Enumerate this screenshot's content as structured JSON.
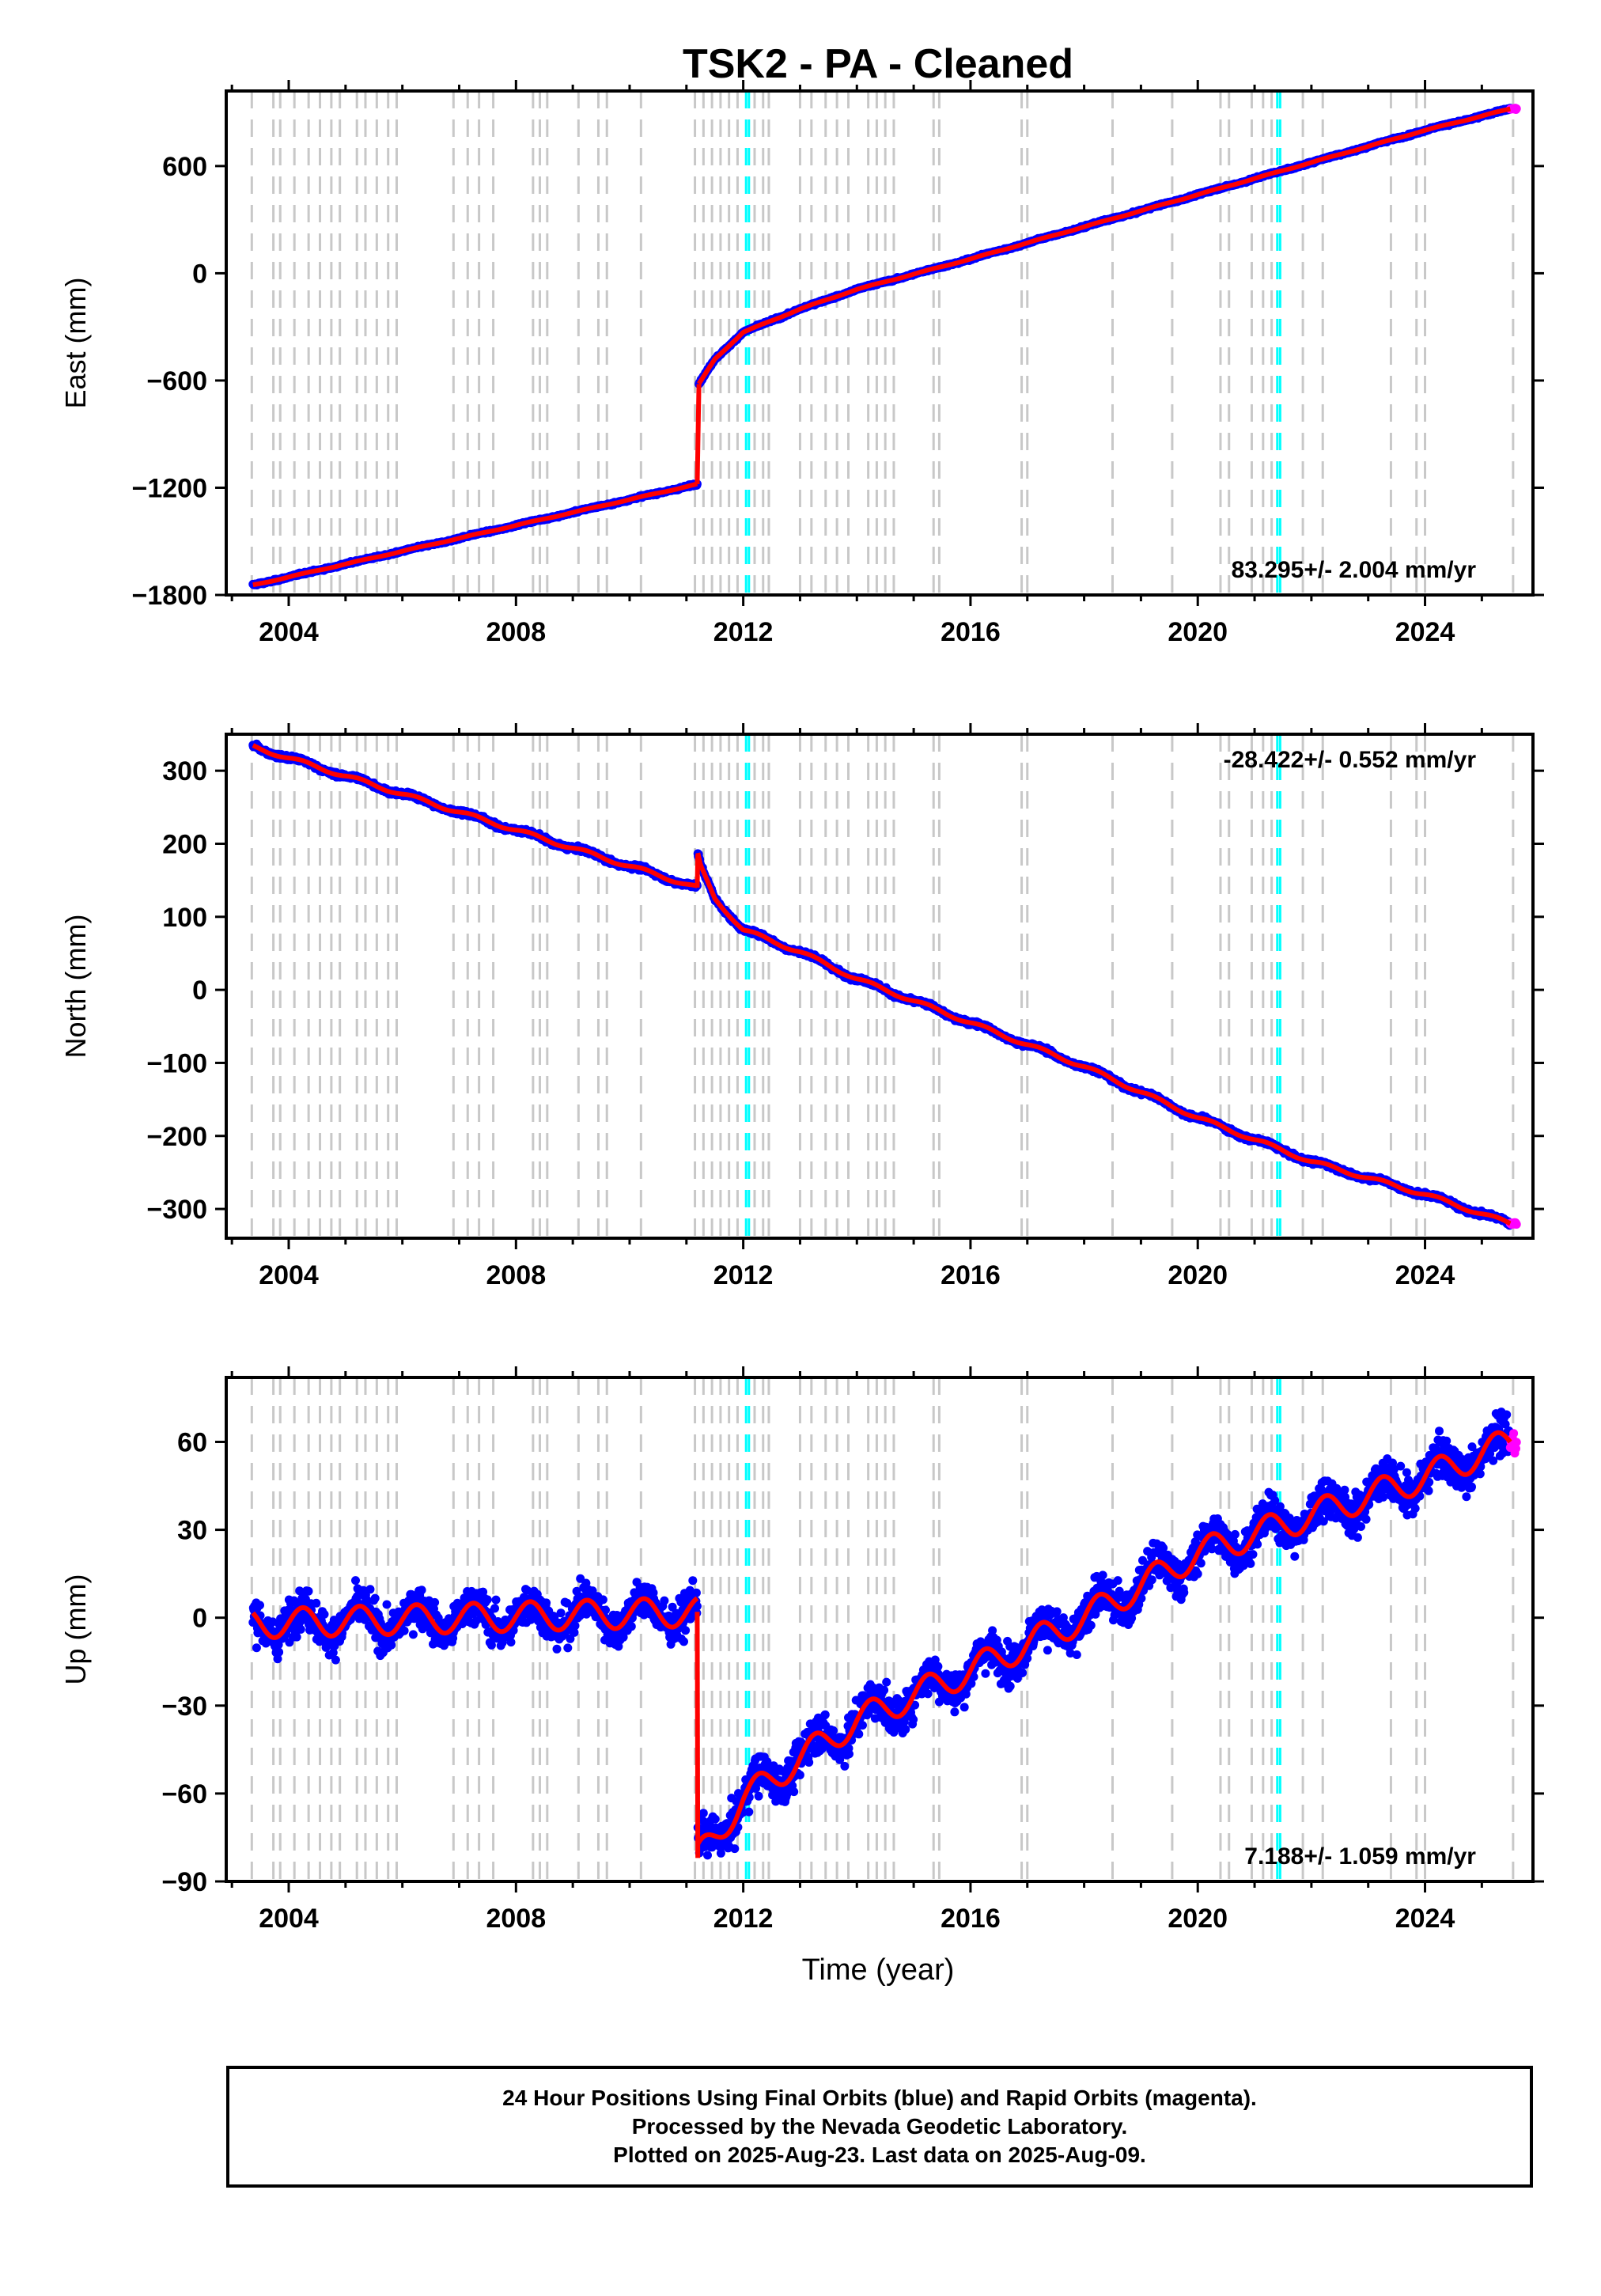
{
  "title": "TSK2  - PA - Cleaned",
  "x_axis_label": "Time (year)",
  "caption_lines": [
    "24 Hour Positions Using Final Orbits (blue) and Rapid Orbits (magenta).",
    "Processed by the Nevada Geodetic Laboratory.",
    "Plotted on 2025-Aug-23. Last data on 2025-Aug-09."
  ],
  "colors": {
    "final_orbits": "#0000ff",
    "rapid_orbits": "#ff00ff",
    "model_fit": "#ff0000",
    "equipment_change_lines": "#c8c8c8",
    "earthquake_lines": "#00ffff"
  },
  "chart_data": [
    {
      "type": "scatter",
      "ylabel": "East (mm)",
      "xlim": [
        2002.9,
        2025.9
      ],
      "ylim": [
        -1800,
        1020
      ],
      "yticks": [
        -1800,
        -1200,
        -600,
        0,
        600
      ],
      "xticks": [
        2004,
        2008,
        2012,
        2016,
        2020,
        2024
      ],
      "rate_label": "83.295+/- 2.004 mm/yr",
      "rate_position": "bottom-right",
      "series": [
        {
          "role": "final",
          "x": [
            2003.37,
            2011.19
          ],
          "y": [
            -1745,
            -1180
          ]
        },
        {
          "role": "final",
          "x": [
            2011.22,
            2011.5,
            2012.0,
            2013.0,
            2014.0,
            2016.0,
            2018.0,
            2020.0,
            2022.0,
            2024.0,
            2025.5
          ],
          "y": [
            -620,
            -480,
            -330,
            -200,
            -90,
            80,
            260,
            440,
            620,
            800,
            920
          ]
        }
      ]
    },
    {
      "type": "scatter",
      "ylabel": "North (mm)",
      "xlim": [
        2002.9,
        2025.9
      ],
      "ylim": [
        -340,
        350
      ],
      "yticks": [
        -300,
        -200,
        -100,
        0,
        100,
        200,
        300
      ],
      "xticks": [
        2004,
        2008,
        2012,
        2016,
        2020,
        2024
      ],
      "rate_label": "-28.422+/- 0.552 mm/yr",
      "rate_position": "top-right",
      "series": [
        {
          "role": "final",
          "x": [
            2003.37,
            2011.19
          ],
          "y": [
            333,
            140
          ]
        },
        {
          "role": "final",
          "x": [
            2011.2,
            2011.25,
            2011.5,
            2012.0,
            2013.0,
            2014.0,
            2016.0,
            2018.0,
            2020.0,
            2022.0,
            2024.0,
            2025.5
          ],
          "y": [
            185,
            168,
            125,
            82,
            52,
            15,
            -45,
            -105,
            -175,
            -235,
            -280,
            -320
          ]
        }
      ]
    },
    {
      "type": "scatter",
      "ylabel": "Up (mm)",
      "xlim": [
        2002.9,
        2025.9
      ],
      "ylim": [
        -90,
        82
      ],
      "yticks": [
        -90,
        -60,
        -30,
        0,
        30,
        60
      ],
      "xticks": [
        2004,
        2008,
        2012,
        2016,
        2020,
        2024
      ],
      "rate_label": "7.188+/- 1.059 mm/yr",
      "rate_position": "bottom-right",
      "series": [
        {
          "role": "final",
          "x": [
            2003.37,
            2011.19
          ],
          "y": [
            -2,
            2
          ]
        },
        {
          "role": "final",
          "x": [
            2011.2,
            2012.0,
            2013.0,
            2014.0,
            2016.0,
            2018.0,
            2020.0,
            2022.0,
            2024.0,
            2025.5
          ],
          "y": [
            -82,
            -62,
            -48,
            -35,
            -18,
            0,
            22,
            35,
            48,
            60
          ]
        }
      ]
    }
  ],
  "event_markers": {
    "equipment_changes": [
      2003.35,
      2003.73,
      2003.85,
      2004.1,
      2004.35,
      2004.55,
      2004.75,
      2004.9,
      2005.2,
      2005.35,
      2005.55,
      2005.75,
      2005.9,
      2006.9,
      2007.15,
      2007.35,
      2007.6,
      2008.3,
      2008.42,
      2008.55,
      2009.1,
      2009.45,
      2009.6,
      2010.2,
      2011.15,
      2011.3,
      2011.45,
      2011.6,
      2011.75,
      2011.9,
      2012.2,
      2012.35,
      2012.45,
      2013.0,
      2013.2,
      2013.45,
      2013.65,
      2013.85,
      2014.2,
      2014.35,
      2014.5,
      2014.65,
      2015.35,
      2015.45,
      2016.9,
      2017.0,
      2018.5,
      2019.55,
      2020.4,
      2020.55,
      2020.95,
      2021.15,
      2021.3,
      2021.85,
      2022.2,
      2023.4,
      2023.85,
      2024.0,
      2025.55
    ],
    "earthquakes": [
      2012.05,
      2012.1,
      2021.4,
      2021.45
    ]
  }
}
